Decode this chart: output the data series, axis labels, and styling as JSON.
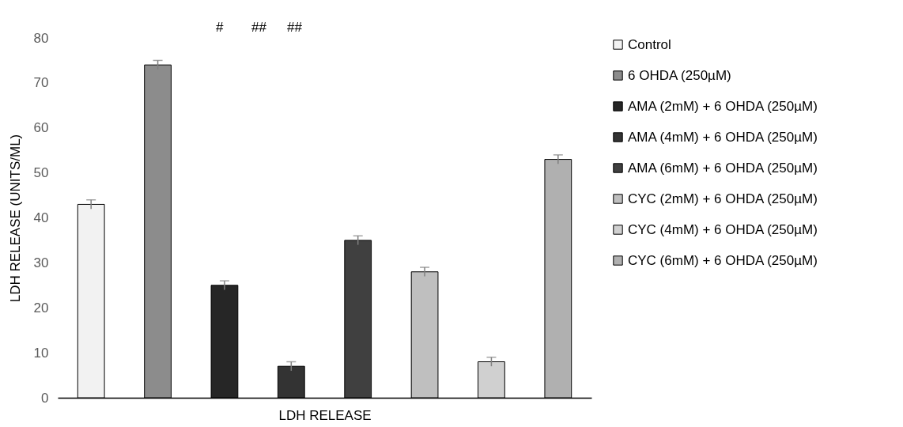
{
  "chart_data": {
    "type": "bar",
    "xlabel": "LDH RELEASE",
    "ylabel": "LDH RELEASE (UNITS/ML)",
    "categories": [
      null
    ],
    "series": [
      {
        "name": "Control",
        "color": "#f2f2f2",
        "values": [
          43
        ],
        "errors": [
          1
        ]
      },
      {
        "name": "6 OHDA (250µM)",
        "color": "#8c8c8c",
        "values": [
          74
        ],
        "errors": [
          1
        ]
      },
      {
        "name": "AMA (2mM) + 6 OHDA (250µM)",
        "color": "#262626",
        "values": [
          25
        ],
        "errors": [
          1
        ]
      },
      {
        "name": "AMA (4mM) + 6 OHDA (250µM)",
        "color": "#333333",
        "values": [
          7
        ],
        "errors": [
          1
        ]
      },
      {
        "name": "AMA (6mM) + 6 OHDA (250µM)",
        "color": "#404040",
        "values": [
          35
        ],
        "errors": [
          1
        ]
      },
      {
        "name": "CYC (2mM) + 6 OHDA (250µM)",
        "color": "#bfbfbf",
        "values": [
          28
        ],
        "errors": [
          1
        ]
      },
      {
        "name": "CYC (4mM) + 6 OHDA (250µM)",
        "color": "#d0d0d0",
        "values": [
          8
        ],
        "errors": [
          1
        ]
      },
      {
        "name": "CYC (6mM) + 6 OHDA (250µM)",
        "color": "#b0b0b0",
        "values": [
          53
        ],
        "errors": [
          1
        ]
      }
    ],
    "annotations": [
      "#",
      "##",
      "##"
    ],
    "ylim": [
      0,
      80
    ],
    "yticks": [
      0,
      10,
      20,
      30,
      40,
      50,
      60,
      70,
      80
    ],
    "grid": false,
    "legend": "right"
  }
}
